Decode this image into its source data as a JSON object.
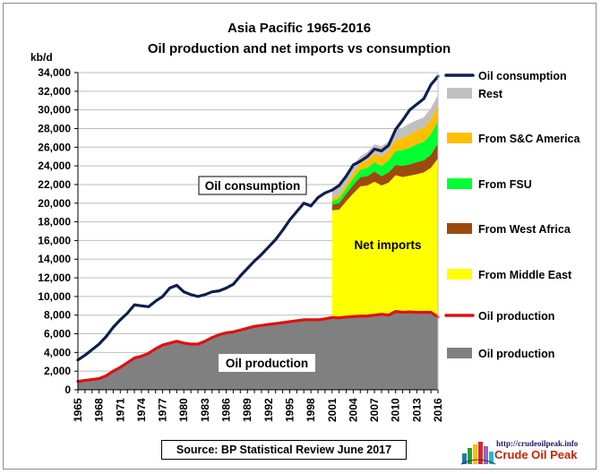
{
  "chart_data": {
    "type": "area",
    "title": "Asia Pacific 1965-2016",
    "subtitle": "Oil production and net imports vs consumption",
    "ylabel": "kb/d",
    "ylim": [
      0,
      34000
    ],
    "yticks": [
      0,
      2000,
      4000,
      6000,
      8000,
      10000,
      12000,
      14000,
      16000,
      18000,
      20000,
      22000,
      24000,
      26000,
      28000,
      30000,
      32000,
      34000
    ],
    "ytick_labels": [
      "0",
      "2,000",
      "4,000",
      "6,000",
      "8,000",
      "10,000",
      "12,000",
      "14,000",
      "16,000",
      "18,000",
      "20,000",
      "22,000",
      "24,000",
      "26,000",
      "28,000",
      "30,000",
      "32,000",
      "34,000"
    ],
    "xticks": [
      1965,
      1968,
      1971,
      1974,
      1977,
      1980,
      1983,
      1986,
      1989,
      1992,
      1995,
      1998,
      2001,
      2004,
      2007,
      2010,
      2013,
      2016
    ],
    "grid": true,
    "legend_position": "right",
    "years": [
      1965,
      1966,
      1967,
      1968,
      1969,
      1970,
      1971,
      1972,
      1973,
      1974,
      1975,
      1976,
      1977,
      1978,
      1979,
      1980,
      1981,
      1982,
      1983,
      1984,
      1985,
      1986,
      1987,
      1988,
      1989,
      1990,
      1991,
      1992,
      1993,
      1994,
      1995,
      1996,
      1997,
      1998,
      1999,
      2000,
      2001,
      2002,
      2003,
      2004,
      2005,
      2006,
      2007,
      2008,
      2009,
      2010,
      2011,
      2012,
      2013,
      2014,
      2015,
      2016
    ],
    "series": [
      {
        "name": "Oil consumption",
        "type": "line",
        "color": "#0d1f4f",
        "values": [
          3200,
          3700,
          4300,
          4900,
          5700,
          6700,
          7500,
          8200,
          9100,
          9000,
          8900,
          9500,
          10000,
          10900,
          11200,
          10500,
          10200,
          10000,
          10200,
          10500,
          10600,
          10900,
          11300,
          12200,
          13000,
          13800,
          14500,
          15300,
          16100,
          17100,
          18200,
          19100,
          20000,
          19700,
          20600,
          21100,
          21400,
          21900,
          22900,
          24100,
          24500,
          25000,
          25800,
          25600,
          26200,
          27900,
          28900,
          30000,
          30600,
          31200,
          32700,
          33600
        ]
      },
      {
        "name": "Oil production",
        "type": "line",
        "color": "#e01010",
        "values": [
          900,
          1000,
          1100,
          1200,
          1500,
          2000,
          2400,
          2900,
          3400,
          3600,
          3900,
          4400,
          4800,
          5000,
          5200,
          5000,
          4900,
          4900,
          5200,
          5600,
          5900,
          6100,
          6200,
          6400,
          6600,
          6800,
          6900,
          7000,
          7100,
          7200,
          7300,
          7400,
          7500,
          7500,
          7500,
          7600,
          7750,
          7700,
          7800,
          7850,
          7900,
          7900,
          8000,
          8100,
          8000,
          8400,
          8300,
          8350,
          8300,
          8300,
          8300,
          7800
        ]
      },
      {
        "name": "Oil production",
        "type": "area",
        "color": "#808080",
        "values": [
          900,
          1000,
          1100,
          1200,
          1500,
          2000,
          2400,
          2900,
          3400,
          3600,
          3900,
          4400,
          4800,
          5000,
          5200,
          5000,
          4900,
          4900,
          5200,
          5600,
          5900,
          6100,
          6200,
          6400,
          6600,
          6800,
          6900,
          7000,
          7100,
          7200,
          7300,
          7400,
          7500,
          7500,
          7500,
          7600,
          7750,
          7700,
          7800,
          7850,
          7900,
          7900,
          8000,
          8100,
          8000,
          8400,
          8300,
          8350,
          8300,
          8300,
          8300,
          7800
        ]
      }
    ],
    "import_years": [
      2001,
      2002,
      2003,
      2004,
      2005,
      2006,
      2007,
      2008,
      2009,
      2010,
      2011,
      2012,
      2013,
      2014,
      2015,
      2016
    ],
    "import_stack": [
      {
        "name": "From Middle East",
        "color": "#ffff00",
        "values": [
          11500,
          11600,
          12400,
          13200,
          13900,
          14000,
          14300,
          13800,
          14200,
          14600,
          14500,
          14600,
          14800,
          15000,
          15500,
          17000
        ]
      },
      {
        "name": "From West Africa",
        "color": "#9c4a10",
        "values": [
          600,
          700,
          800,
          900,
          1000,
          1000,
          1100,
          1000,
          1100,
          1100,
          1200,
          1200,
          1300,
          1300,
          1400,
          1600
        ]
      },
      {
        "name": "From FSU",
        "color": "#00ff33",
        "values": [
          400,
          500,
          600,
          700,
          800,
          900,
          1000,
          1100,
          1300,
          1500,
          1700,
          1800,
          1900,
          2000,
          2200,
          2400
        ]
      },
      {
        "name": "From S&C America",
        "color": "#ffbf00",
        "values": [
          300,
          400,
          500,
          600,
          700,
          800,
          900,
          1000,
          1000,
          1200,
          1300,
          1400,
          1500,
          1500,
          1600,
          1700
        ]
      },
      {
        "name": "Rest",
        "color": "#c0c0c0",
        "values": [
          800,
          800,
          800,
          850,
          700,
          900,
          1000,
          1100,
          1000,
          1000,
          1100,
          1200,
          1100,
          1100,
          1200,
          1100
        ]
      }
    ],
    "legend": [
      {
        "label": "Oil consumption",
        "kind": "line",
        "color": "#0d1f4f"
      },
      {
        "label": "Rest",
        "kind": "box",
        "color": "#c0c0c0"
      },
      {
        "label": "From S&C America",
        "kind": "box",
        "color": "#ffbf00"
      },
      {
        "label": "From FSU",
        "kind": "box",
        "color": "#00ff33"
      },
      {
        "label": "From West Africa",
        "kind": "box",
        "color": "#9c4a10"
      },
      {
        "label": "From Middle East",
        "kind": "box",
        "color": "#ffff00"
      },
      {
        "label": "Oil production",
        "kind": "line",
        "color": "#e01010"
      },
      {
        "label": "Oil production",
        "kind": "box",
        "color": "#808080"
      }
    ],
    "annotations": {
      "consumption": "Oil consumption",
      "imports": "Net imports",
      "production": "Oil production"
    },
    "source": "Source: BP Statistical Review  June 2017"
  },
  "logo": {
    "url": "http://crudeoilpeak.info",
    "name": "Crude Oil Peak"
  }
}
